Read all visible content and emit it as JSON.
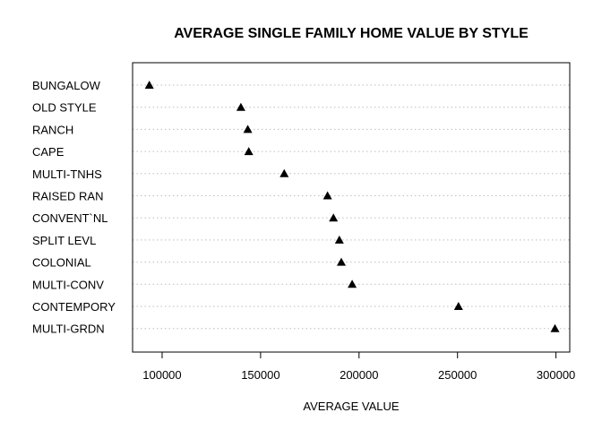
{
  "chart_data": {
    "type": "scatter",
    "title": "AVERAGE SINGLE FAMILY HOME VALUE BY STYLE",
    "xlabel": "AVERAGE VALUE",
    "ylabel": "",
    "categories": [
      "BUNGALOW",
      "OLD STYLE",
      "RANCH",
      "CAPE",
      "MULTI-TNHS",
      "RAISED RAN",
      "CONVENT`NL",
      "SPLIT LEVL",
      "COLONIAL",
      "MULTI-CONV",
      "CONTEMPORY",
      "MULTI-GRDN"
    ],
    "values": [
      93500,
      140000,
      143500,
      144000,
      162000,
      184000,
      187000,
      190000,
      191000,
      196500,
      250500,
      299500
    ],
    "xlim": [
      85000,
      307000
    ],
    "xticks": [
      "100000",
      "150000",
      "200000",
      "250000",
      "300000"
    ],
    "xtick_values": [
      100000,
      150000,
      200000,
      250000,
      300000
    ],
    "grid": "horizontal-dotted",
    "marker": "triangle",
    "marker_color": "#000000"
  }
}
